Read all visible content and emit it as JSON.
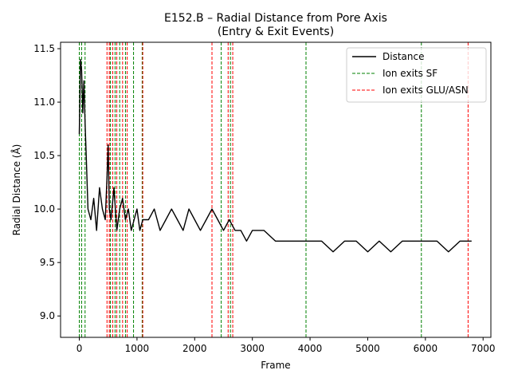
{
  "chart_data": {
    "type": "line",
    "title": "E152.B – Radial Distance from Pore Axis",
    "subtitle": "(Entry & Exit Events)",
    "xlabel": "Frame",
    "ylabel": "Radial Distance (Å)",
    "xlim": [
      -325,
      7135
    ],
    "ylim": [
      8.8,
      11.56
    ],
    "xticks": [
      0,
      1000,
      2000,
      3000,
      4000,
      5000,
      6000,
      7000
    ],
    "xtick_labels": [
      "0",
      "1000",
      "2000",
      "3000",
      "4000",
      "5000",
      "6000",
      "7000"
    ],
    "yticks": [
      9.0,
      9.5,
      10.0,
      10.5,
      11.0,
      11.5
    ],
    "ytick_labels": [
      "9.0",
      "9.5",
      "10.0",
      "10.5",
      "11.0",
      "11.5"
    ],
    "grid": false,
    "legend_position": "top-right",
    "legend": [
      {
        "label": "Distance",
        "color": "#000000",
        "style": "solid"
      },
      {
        "label": "Ion exits SF",
        "color": "#008000",
        "style": "dashed"
      },
      {
        "label": "Ion exits GLU/ASN",
        "color": "#ff0000",
        "style": "dashed"
      }
    ],
    "series": [
      {
        "name": "Distance",
        "color": "#000000",
        "x": [
          0,
          20,
          40,
          60,
          80,
          100,
          120,
          150,
          200,
          250,
          300,
          350,
          400,
          450,
          480,
          500,
          520,
          550,
          600,
          650,
          700,
          750,
          800,
          850,
          900,
          950,
          1000,
          1050,
          1100,
          1200,
          1300,
          1400,
          1500,
          1600,
          1700,
          1800,
          1900,
          2000,
          2100,
          2200,
          2300,
          2400,
          2500,
          2600,
          2700,
          2800,
          2900,
          3000,
          3200,
          3400,
          3600,
          3800,
          4000,
          4200,
          4400,
          4600,
          4800,
          5000,
          5200,
          5400,
          5600,
          5800,
          6000,
          6200,
          6400,
          6600,
          6800
        ],
        "y": [
          10.7,
          11.4,
          11.3,
          10.9,
          11.2,
          10.8,
          10.5,
          10.0,
          9.9,
          10.1,
          9.8,
          10.2,
          10.0,
          9.9,
          10.3,
          10.6,
          10.0,
          9.9,
          10.2,
          9.8,
          10.0,
          10.1,
          9.9,
          10.0,
          9.8,
          9.9,
          10.0,
          9.8,
          9.9,
          9.9,
          10.0,
          9.8,
          9.9,
          10.0,
          9.9,
          9.8,
          10.0,
          9.9,
          9.8,
          9.9,
          10.0,
          9.9,
          9.8,
          9.9,
          9.8,
          9.8,
          9.7,
          9.8,
          9.8,
          9.7,
          9.7,
          9.7,
          9.7,
          9.7,
          9.6,
          9.7,
          9.7,
          9.6,
          9.7,
          9.6,
          9.7,
          9.7,
          9.7,
          9.7,
          9.6,
          9.7,
          9.7
        ]
      }
    ],
    "events_sf": [
      0,
      40,
      100,
      540,
      620,
      700,
      800,
      940,
      1090,
      2460,
      2620,
      3930,
      5930
    ],
    "events_glu_asn": [
      480,
      520,
      580,
      650,
      750,
      830,
      1100,
      2300,
      2580,
      2660,
      6740
    ]
  }
}
